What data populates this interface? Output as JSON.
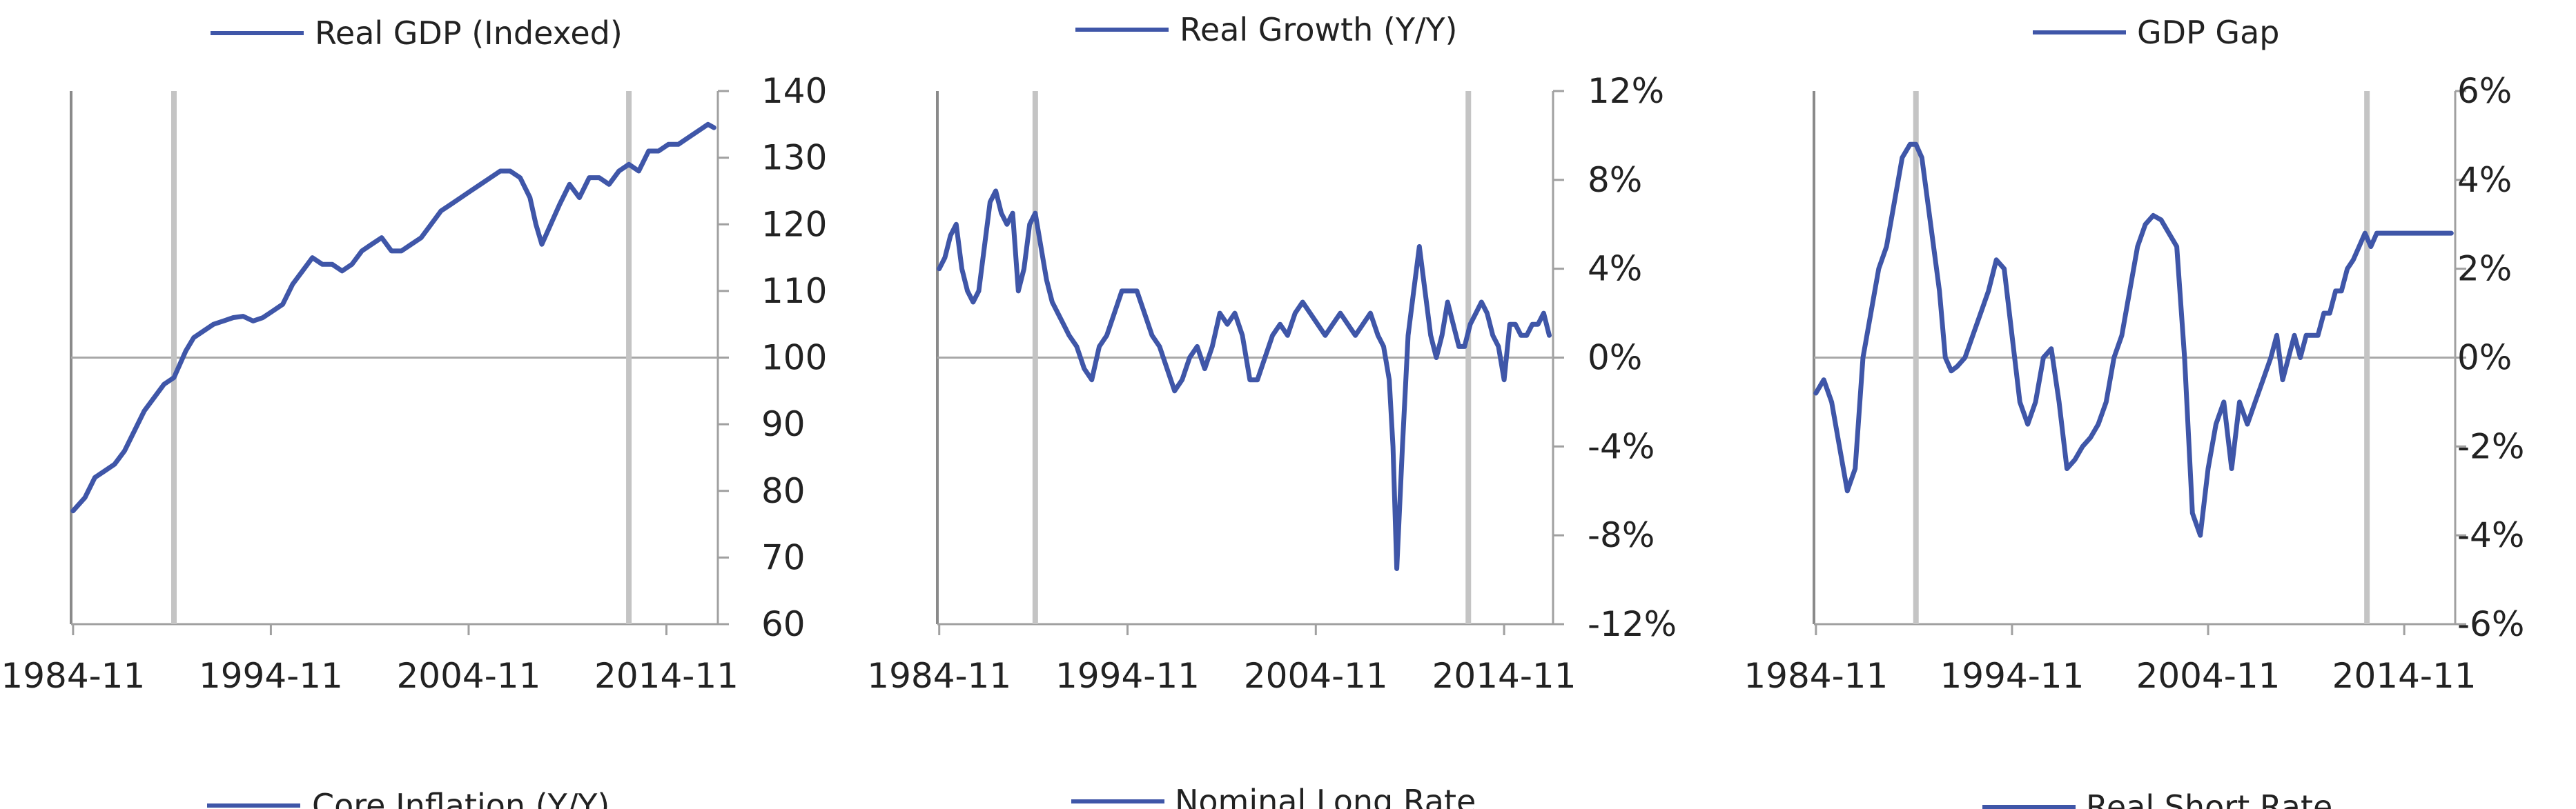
{
  "chart_data": [
    {
      "type": "line",
      "legend": "Real GDP (Indexed)",
      "x_ticks": [
        "1984-11",
        "1994-11",
        "2004-11",
        "2014-11"
      ],
      "y_ticks": [
        "140",
        "130",
        "120",
        "110",
        "100",
        "90",
        "80",
        "70",
        "60"
      ],
      "ylim": [
        60,
        140
      ],
      "xlim": [
        1984.8,
        2017.5
      ],
      "y_axis_side": "right",
      "baseline": 100,
      "shaded_markers": [
        1990,
        2013
      ],
      "series_color": "#3f56a8",
      "x": [
        1984.9,
        1985.5,
        1986.0,
        1986.5,
        1987.0,
        1987.5,
        1988.0,
        1988.5,
        1989.0,
        1989.5,
        1990.0,
        1990.3,
        1990.6,
        1991.0,
        1991.5,
        1992.0,
        1992.5,
        1993.0,
        1993.5,
        1994.0,
        1994.5,
        1995.0,
        1995.5,
        1996.0,
        1996.5,
        1997.0,
        1997.5,
        1998.0,
        1998.5,
        1999.0,
        1999.5,
        2000.0,
        2000.5,
        2001.0,
        2001.5,
        2002.0,
        2002.5,
        2003.0,
        2003.5,
        2004.0,
        2004.5,
        2005.0,
        2005.5,
        2006.0,
        2006.5,
        2007.0,
        2007.5,
        2008.0,
        2008.3,
        2008.6,
        2008.9,
        2009.2,
        2009.5,
        2010.0,
        2010.5,
        2011.0,
        2011.5,
        2012.0,
        2012.5,
        2013.0,
        2013.5,
        2014.0,
        2014.5,
        2015.0,
        2015.5,
        2016.0,
        2016.5,
        2017.0,
        2017.3
      ],
      "values": [
        77,
        79,
        82,
        83,
        84,
        86,
        89,
        92,
        94,
        96,
        97,
        99,
        101,
        103,
        104,
        105,
        105.5,
        106,
        106.2,
        105.5,
        106,
        107,
        108,
        111,
        113,
        115,
        114,
        114,
        113,
        114,
        116,
        117,
        118,
        116,
        116,
        117,
        118,
        120,
        122,
        123,
        124,
        125,
        126,
        127,
        128,
        128,
        127,
        124,
        120,
        117,
        119,
        121,
        123,
        126,
        124,
        127,
        127,
        126,
        128,
        129,
        128,
        131,
        131,
        132,
        132,
        133,
        134,
        135,
        134.5
      ]
    },
    {
      "type": "line",
      "legend": "Real Growth (Y/Y)",
      "x_ticks": [
        "1984-11",
        "1994-11",
        "2004-11",
        "2014-11"
      ],
      "y_ticks": [
        "12%",
        "8%",
        "4%",
        "0%",
        "-4%",
        "-8%",
        "-12%"
      ],
      "ylim": [
        -12,
        12
      ],
      "xlim": [
        1984.8,
        2017.5
      ],
      "y_axis_side": "right",
      "baseline": 0,
      "shaded_markers": [
        1990,
        2013
      ],
      "series_color": "#3f56a8",
      "x": [
        1984.9,
        1985.2,
        1985.5,
        1985.8,
        1986.1,
        1986.4,
        1986.7,
        1987.0,
        1987.3,
        1987.6,
        1987.9,
        1988.2,
        1988.5,
        1988.8,
        1989.1,
        1989.4,
        1989.7,
        1990.0,
        1990.3,
        1990.6,
        1990.9,
        1991.2,
        1991.5,
        1991.8,
        1992.2,
        1992.6,
        1993.0,
        1993.4,
        1993.8,
        1994.2,
        1994.6,
        1995.0,
        1995.4,
        1995.8,
        1996.2,
        1996.6,
        1997.0,
        1997.4,
        1997.8,
        1998.2,
        1998.6,
        1999.0,
        1999.4,
        1999.8,
        2000.2,
        2000.6,
        2001.0,
        2001.4,
        2001.8,
        2002.2,
        2002.6,
        2003.0,
        2003.4,
        2003.8,
        2004.2,
        2004.6,
        2005.0,
        2005.4,
        2005.8,
        2006.2,
        2006.6,
        2007.0,
        2007.4,
        2007.8,
        2008.2,
        2008.5,
        2008.8,
        2009.0,
        2009.2,
        2009.5,
        2009.8,
        2010.1,
        2010.4,
        2010.7,
        2011.0,
        2011.3,
        2011.6,
        2011.9,
        2012.2,
        2012.5,
        2012.8,
        2013.1,
        2013.4,
        2013.7,
        2014.0,
        2014.3,
        2014.6,
        2014.9,
        2015.2,
        2015.5,
        2015.8,
        2016.1,
        2016.4,
        2016.7,
        2017.0,
        2017.3
      ],
      "values": [
        4,
        4.5,
        5.5,
        6,
        4,
        3,
        2.5,
        3,
        5,
        7,
        7.5,
        6.5,
        6,
        6.5,
        3,
        4,
        6,
        6.5,
        5,
        3.5,
        2.5,
        2,
        1.5,
        1,
        0.5,
        -0.5,
        -1,
        0.5,
        1,
        2,
        3,
        3,
        3,
        2,
        1,
        0.5,
        -0.5,
        -1.5,
        -1,
        0,
        0.5,
        -0.5,
        0.5,
        2,
        1.5,
        2,
        1,
        -1,
        -1,
        0,
        1,
        1.5,
        1,
        2,
        2.5,
        2,
        1.5,
        1,
        1.5,
        2,
        1.5,
        1,
        1.5,
        2,
        1,
        0.5,
        -1,
        -4,
        -9.5,
        -4,
        1,
        3,
        5,
        3,
        1,
        0,
        1,
        2.5,
        1.5,
        0.5,
        0.5,
        1.5,
        2,
        2.5,
        2,
        1,
        0.5,
        -1,
        1.5,
        1.5,
        1,
        1,
        1.5,
        1.5,
        2,
        1
      ],
      "annotations": []
    },
    {
      "type": "line",
      "legend": "GDP Gap",
      "x_ticks": [
        "1984-11",
        "1994-11",
        "2004-11",
        "2014-11"
      ],
      "y_ticks": [
        "6%",
        "4%",
        "2%",
        "0%",
        "-2%",
        "-4%",
        "-6%"
      ],
      "ylim": [
        -6,
        6
      ],
      "xlim": [
        1984.8,
        2017.5
      ],
      "y_axis_side": "right",
      "baseline": 0,
      "shaded_markers": [
        1990,
        2013
      ],
      "series_color": "#3f56a8",
      "x": [
        1984.9,
        1985.3,
        1985.7,
        1986.1,
        1986.5,
        1986.9,
        1987.3,
        1987.7,
        1988.1,
        1988.5,
        1988.9,
        1989.3,
        1989.7,
        1990.0,
        1990.3,
        1990.6,
        1990.9,
        1991.2,
        1991.5,
        1991.8,
        1992.1,
        1992.5,
        1992.9,
        1993.3,
        1993.7,
        1994.1,
        1994.5,
        1994.9,
        1995.3,
        1995.7,
        1996.1,
        1996.5,
        1996.9,
        1997.3,
        1997.7,
        1998.1,
        1998.5,
        1998.9,
        1999.3,
        1999.7,
        2000.1,
        2000.5,
        2000.9,
        2001.3,
        2001.7,
        2002.1,
        2002.5,
        2002.9,
        2003.3,
        2003.7,
        2004.1,
        2004.5,
        2004.9,
        2005.3,
        2005.7,
        2006.1,
        2006.5,
        2006.9,
        2007.3,
        2007.7,
        2008.1,
        2008.4,
        2008.7,
        2009.0,
        2009.3,
        2009.6,
        2009.9,
        2010.2,
        2010.5,
        2010.8,
        2011.1,
        2011.4,
        2011.7,
        2012.0,
        2012.3,
        2012.6,
        2012.9,
        2013.2,
        2013.5,
        2013.8,
        2014.1,
        2014.4,
        2014.7,
        2015.0,
        2015.3,
        2015.6,
        2015.9,
        2016.2,
        2016.5,
        2016.8,
        2017.1,
        2017.3
      ],
      "values": [
        -0.8,
        -0.5,
        -1,
        -2,
        -3,
        -2.5,
        0,
        1,
        2,
        2.5,
        3.5,
        4.5,
        4.8,
        4.8,
        4.5,
        3.5,
        2.5,
        1.5,
        0,
        -0.3,
        -0.2,
        0,
        0.5,
        1,
        1.5,
        2.2,
        2,
        0.5,
        -1,
        -1.5,
        -1,
        0,
        0.2,
        -1,
        -2.5,
        -2.3,
        -2,
        -1.8,
        -1.5,
        -1,
        0,
        0.5,
        1.5,
        2.5,
        3,
        3.2,
        3.1,
        2.8,
        2.5,
        0,
        -3.5,
        -4,
        -2.5,
        -1.5,
        -1,
        -2.5,
        -1,
        -1.5,
        -1,
        -0.5,
        0,
        0.5,
        -0.5,
        0,
        0.5,
        0,
        0.5,
        0.5,
        0.5,
        1,
        1,
        1.5,
        1.5,
        2,
        2.2,
        2.5,
        2.8,
        2.5,
        2.8,
        2.8,
        2.8,
        2.8,
        2.8,
        2.8,
        2.8,
        2.8,
        2.8,
        2.8,
        2.8,
        2.8,
        2.8,
        2.8
      ]
    }
  ],
  "bottom_legends": [
    "Core Inflation (Y/Y)",
    "Nominal Long Rate",
    "Real Short Rate"
  ]
}
